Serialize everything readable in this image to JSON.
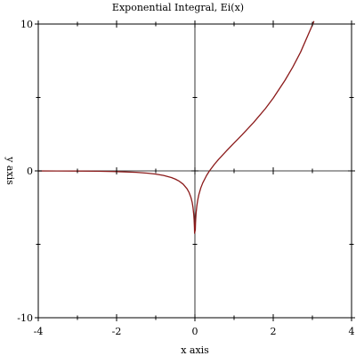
{
  "chart_data": {
    "type": "line",
    "title": "Exponential Integral, Ei(x)",
    "xlabel": "x axis",
    "ylabel": "y axis",
    "xlim": [
      -4,
      4
    ],
    "ylim": [
      -10,
      10
    ],
    "grid": false,
    "x_tick_labels": [
      {
        "value": -4,
        "label": "-4"
      },
      {
        "value": -2,
        "label": "-2"
      },
      {
        "value": 0,
        "label": "0"
      },
      {
        "value": 2,
        "label": "2"
      },
      {
        "value": 4,
        "label": "4"
      }
    ],
    "y_tick_labels": [
      {
        "value": -10,
        "label": "-10"
      },
      {
        "value": 0,
        "label": "0"
      },
      {
        "value": 10,
        "label": "10"
      }
    ],
    "x_minor_ticks": [
      -3,
      -1,
      1,
      3
    ],
    "y_minor_ticks": [
      -5,
      5
    ],
    "series": [
      {
        "color": "#8b1a1a",
        "x": [
          -4.0,
          -3.5,
          -3.0,
          -2.5,
          -2.0,
          -1.5,
          -1.2,
          -1.0,
          -0.8,
          -0.6,
          -0.5,
          -0.4,
          -0.3,
          -0.2,
          -0.15,
          -0.1,
          -0.07,
          -0.05,
          -0.03,
          -0.02,
          -0.012,
          -0.008,
          0.01,
          0.015,
          0.02,
          0.03,
          0.05,
          0.07,
          0.1,
          0.15,
          0.2,
          0.3,
          0.372,
          0.5,
          0.6,
          0.8,
          1.0,
          1.2,
          1.5,
          1.8,
          2.0,
          2.3,
          2.5,
          2.7,
          3.0,
          3.04
        ],
        "y": [
          -0.0038,
          -0.007,
          -0.013,
          -0.0249,
          -0.0489,
          -0.1,
          -0.1584,
          -0.2194,
          -0.3106,
          -0.4544,
          -0.5598,
          -0.7024,
          -0.9057,
          -1.2227,
          -1.4645,
          -1.8229,
          -2.1437,
          -2.4679,
          -2.9622,
          -3.3523,
          -3.8488,
          -4.2464,
          -4.0179,
          -3.6028,
          -3.3069,
          -2.8838,
          -2.3679,
          -2.0147,
          -1.6228,
          -1.1634,
          -0.8218,
          -0.3027,
          0.0,
          0.4542,
          0.7699,
          1.3474,
          1.8951,
          2.442,
          3.3013,
          4.242,
          4.9542,
          6.1663,
          7.0738,
          8.0946,
          9.9338,
          10.2
        ]
      }
    ]
  }
}
